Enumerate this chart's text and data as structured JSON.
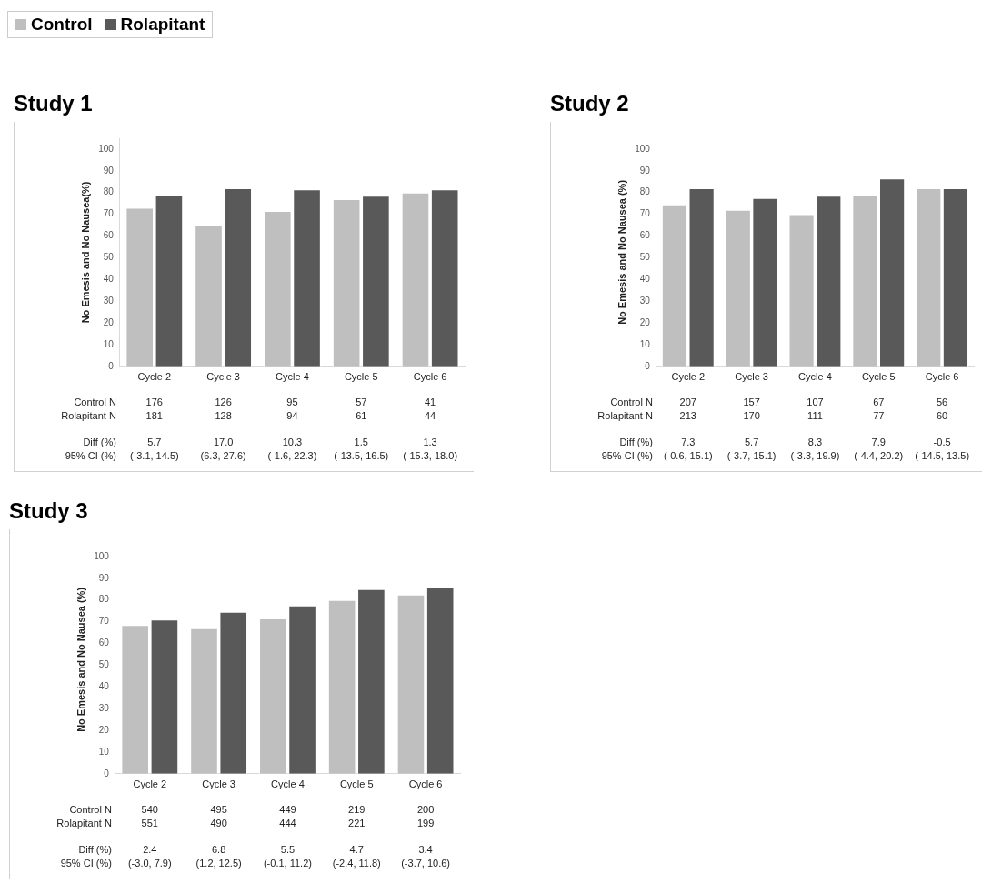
{
  "chart_data": [
    {
      "type": "bar",
      "title": "Study 1",
      "ylabel": "No Emesis and No Nausea(%)",
      "categories": [
        "Cycle 2",
        "Cycle 3",
        "Cycle 4",
        "Cycle 5",
        "Cycle 6"
      ],
      "series": [
        {
          "name": "Control",
          "color": "#bfbfbf",
          "values": [
            73,
            65,
            71.5,
            77,
            80
          ]
        },
        {
          "name": "Rolapitant",
          "color": "#595959",
          "values": [
            79,
            82,
            81.5,
            78.5,
            81.5
          ]
        }
      ],
      "ylim": [
        0,
        105
      ],
      "yticks": [
        0,
        10,
        20,
        30,
        40,
        50,
        60,
        70,
        80,
        90,
        100
      ],
      "grid": false,
      "legend": "top left",
      "annotations": [
        "Control N",
        "176",
        "126",
        "95",
        "57",
        "41",
        "Rolapitant N",
        "181",
        "128",
        "94",
        "61",
        "44",
        "Diff (%)",
        "5.7",
        "17.0",
        "10.3",
        "1.5",
        "1.3",
        "95% CI (%)",
        "(-3.1, 14.5)",
        "(6.3, 27.6)",
        "(-1.6, 22.3)",
        "(-13.5, 16.5)",
        "(-15.3, 18.0)"
      ]
    },
    {
      "type": "bar",
      "title": "Study 2",
      "ylabel": "No Emesis and No Nausea (%)",
      "categories": [
        "Cycle 2",
        "Cycle 3",
        "Cycle 4",
        "Cycle 5",
        "Cycle 6"
      ],
      "series": [
        {
          "color": "#bfbfbf",
          "values": [
            74.5,
            72,
            70,
            79,
            82
          ]
        },
        {
          "color": "#595959",
          "values": [
            82,
            77.5,
            78.5,
            86.5,
            82
          ]
        }
      ],
      "ylim": [
        0,
        105
      ],
      "yticks": [
        0,
        10,
        20,
        30,
        40,
        50,
        60,
        70,
        80,
        90,
        100
      ],
      "grid": false,
      "annotations": [
        "Control N",
        "207",
        "157",
        "107",
        "67",
        "56",
        "Rolapitant N",
        "213",
        "170",
        "111",
        "77",
        "60",
        "Diff (%)",
        "7.3",
        "5.7",
        "8.3",
        "7.9",
        "-0.5",
        "95% CI (%)",
        "(-0.6, 15.1)",
        "(-3.7, 15.1)",
        "(-3.3, 19.9)",
        "(-4.4, 20.2)",
        "(-14.5, 13.5)"
      ]
    },
    {
      "type": "bar",
      "title": "Study 3",
      "ylabel": "No Emesis and No Nausea (%)",
      "categories": [
        "Cycle 2",
        "Cycle 3",
        "Cycle 4",
        "Cycle 5",
        "Cycle 6"
      ],
      "series": [
        {
          "color": "#bfbfbf",
          "values": [
            68.5,
            67,
            71.5,
            80,
            82.5
          ]
        },
        {
          "color": "#595959",
          "values": [
            71,
            74.5,
            77.5,
            85,
            86
          ]
        }
      ],
      "ylim": [
        0,
        105
      ],
      "yticks": [
        0,
        10,
        20,
        30,
        40,
        50,
        60,
        70,
        80,
        90,
        100
      ],
      "grid": false,
      "annotations": [
        "Control N",
        "540",
        "495",
        "449",
        "219",
        "200",
        "Rolapitant N",
        "551",
        "490",
        "444",
        "221",
        "199",
        "Diff (%)",
        "2.4",
        "6.8",
        "5.5",
        "4.7",
        "3.4",
        "95% CI (%)",
        "(-3.0, 7.9)",
        "(1.2, 12.5)",
        "(-0.1, 11.2)",
        "(-2.4, 11.8)",
        "(-3.7, 10.6)"
      ]
    }
  ]
}
